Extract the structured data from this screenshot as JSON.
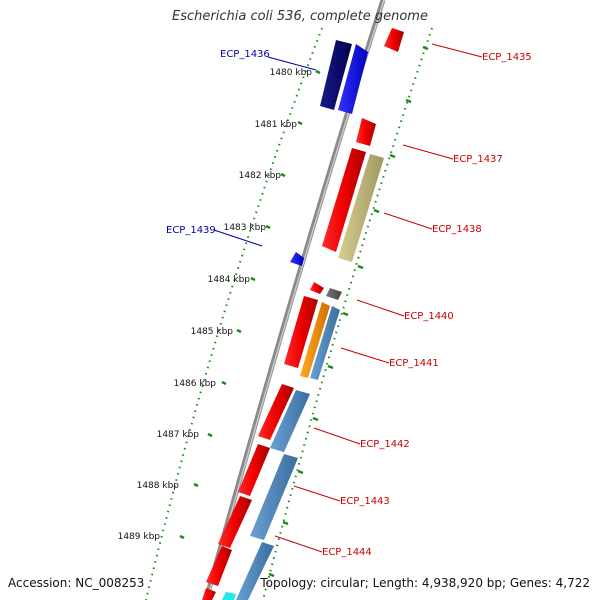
{
  "title": "Escherichia coli 536, complete genome",
  "footer": {
    "accession": "Accession: NC_008253",
    "summary": "Topology: circular; Length: 4,938,920 bp; Genes: 4,722"
  },
  "colors": {
    "backbone": "#8f8f8f",
    "tick": "#1a8a1a",
    "label_red": "#cc0000",
    "label_blue": "#0000aa"
  },
  "scale_labels": [
    "1480 kbp",
    "1481 kbp",
    "1482 kbp",
    "1483 kbp",
    "1484 kbp",
    "1485 kbp",
    "1486 kbp",
    "1487 kbp",
    "1488 kbp",
    "1489 kbp"
  ],
  "gene_labels": [
    "ECP_1435",
    "ECP_1436",
    "ECP_1437",
    "ECP_1438",
    "ECP_1439",
    "ECP_1440",
    "ECP_1441",
    "ECP_1442",
    "ECP_1443",
    "ECP_1444"
  ]
}
